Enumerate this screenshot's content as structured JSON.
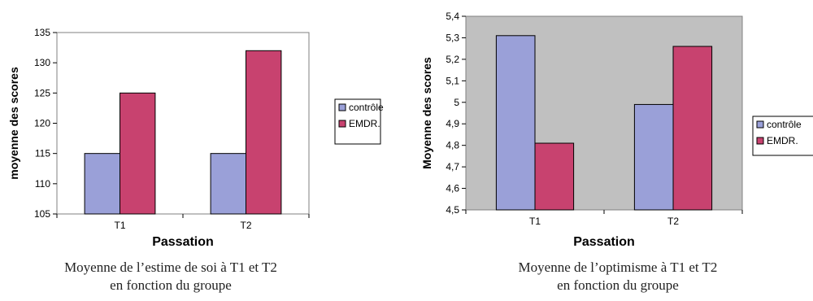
{
  "chart_data": [
    {
      "type": "bar",
      "categories": [
        "T1",
        "T2"
      ],
      "series": [
        {
          "name": "contrôle",
          "values": [
            115,
            115
          ]
        },
        {
          "name": "EMDR.",
          "values": [
            125,
            132
          ]
        }
      ],
      "xlabel": "Passation",
      "ylabel": "moyenne des scores",
      "ylim": [
        105,
        135
      ],
      "yticks": [
        105,
        110,
        115,
        120,
        125,
        130,
        135
      ],
      "ytick_labels": [
        "105",
        "110",
        "115",
        "120",
        "125",
        "130",
        "135"
      ],
      "grid": false,
      "legend_position": "right",
      "caption_lines": [
        "Moyenne de l’estime de soi à T1 et T2",
        "en fonction du groupe"
      ]
    },
    {
      "type": "bar",
      "categories": [
        "T1",
        "T2"
      ],
      "series": [
        {
          "name": "contrôle",
          "values": [
            5.31,
            4.99
          ]
        },
        {
          "name": "EMDR.",
          "values": [
            4.81,
            5.26
          ]
        }
      ],
      "xlabel": "Passation",
      "ylabel": "Moyenne des scores",
      "ylim": [
        4.5,
        5.4
      ],
      "yticks": [
        4.5,
        4.6,
        4.7,
        4.8,
        4.9,
        5.0,
        5.1,
        5.2,
        5.3,
        5.4
      ],
      "ytick_labels": [
        "4,5",
        "4,6",
        "4,7",
        "4,8",
        "4,9",
        "5",
        "5,1",
        "5,2",
        "5,3",
        "5,4"
      ],
      "grid": false,
      "legend_position": "right",
      "caption_lines": [
        "Moyenne de l’optimisme à T1 et T2",
        "en fonction du groupe"
      ]
    }
  ],
  "colors": {
    "series": [
      "#9AA0D8",
      "#C8426F"
    ],
    "left_plot_bg": "#ffffff",
    "right_plot_bg": "#C0C0C0"
  }
}
